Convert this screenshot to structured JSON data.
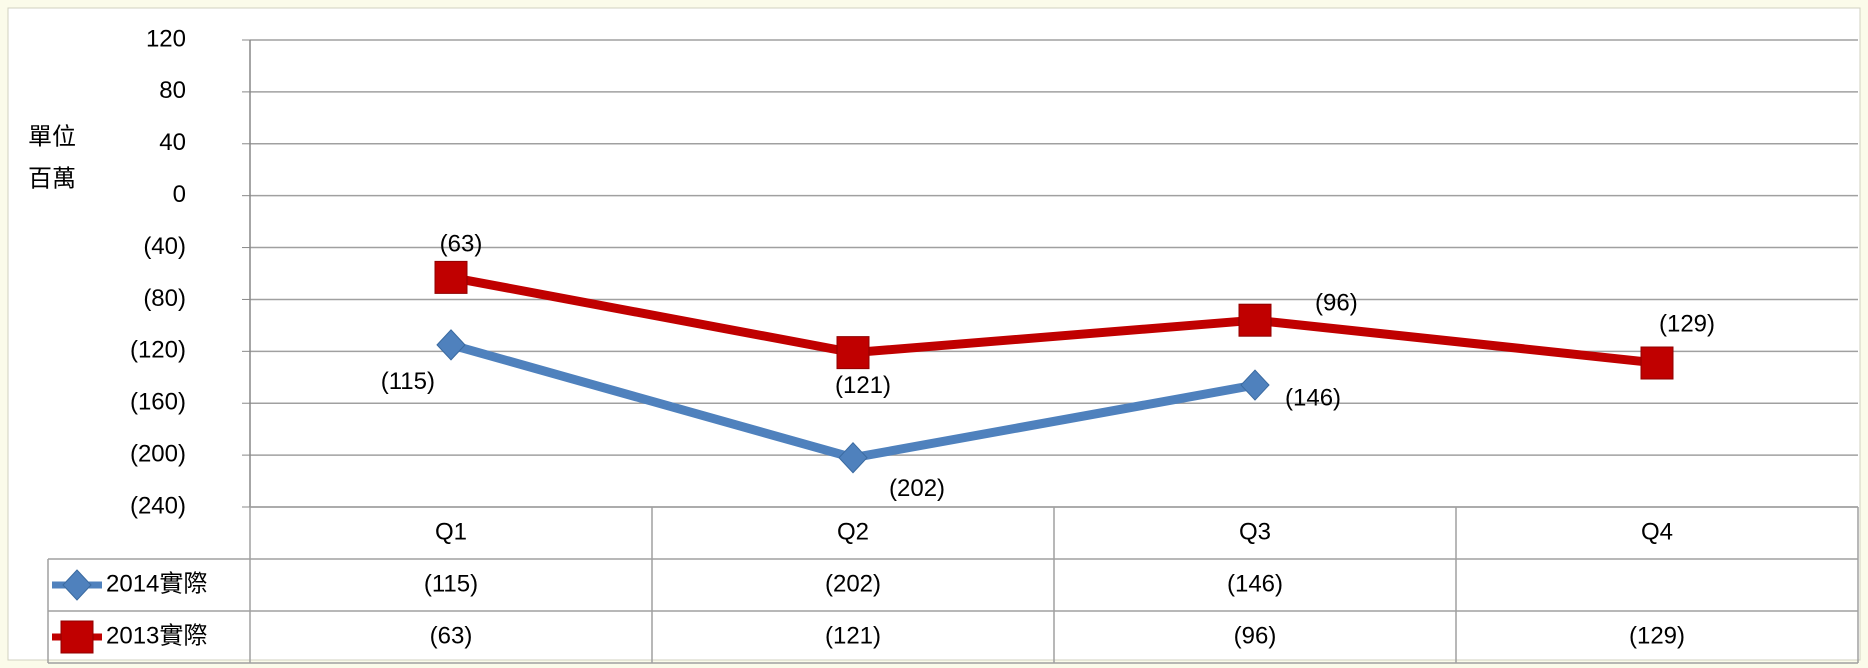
{
  "chart_data": {
    "type": "line",
    "ylabel": [
      "單位",
      "百萬"
    ],
    "categories": [
      "Q1",
      "Q2",
      "Q3",
      "Q4"
    ],
    "series": [
      {
        "name": "2014實際",
        "color": "#4f81bd",
        "marker": "diamond",
        "values": [
          -115,
          -202,
          -146,
          null
        ],
        "value_labels": [
          "(115)",
          "(202)",
          "(146)",
          null
        ]
      },
      {
        "name": "2013實際",
        "color": "#c00000",
        "marker": "square",
        "values": [
          -63,
          -121,
          -96,
          -129
        ],
        "value_labels": [
          "(63)",
          "(121)",
          "(96)",
          "(129)"
        ]
      }
    ],
    "ylim": [
      -240,
      120
    ],
    "yticks": [
      {
        "value": -240,
        "label": "(240)"
      },
      {
        "value": -200,
        "label": "(200)"
      },
      {
        "value": -160,
        "label": "(160)"
      },
      {
        "value": -120,
        "label": "(120)"
      },
      {
        "value": -80,
        "label": "(80)"
      },
      {
        "value": -40,
        "label": "(40)"
      },
      0,
      40,
      80,
      120
    ],
    "grid": true,
    "negative_color": "#ff0000",
    "data_table": true
  }
}
